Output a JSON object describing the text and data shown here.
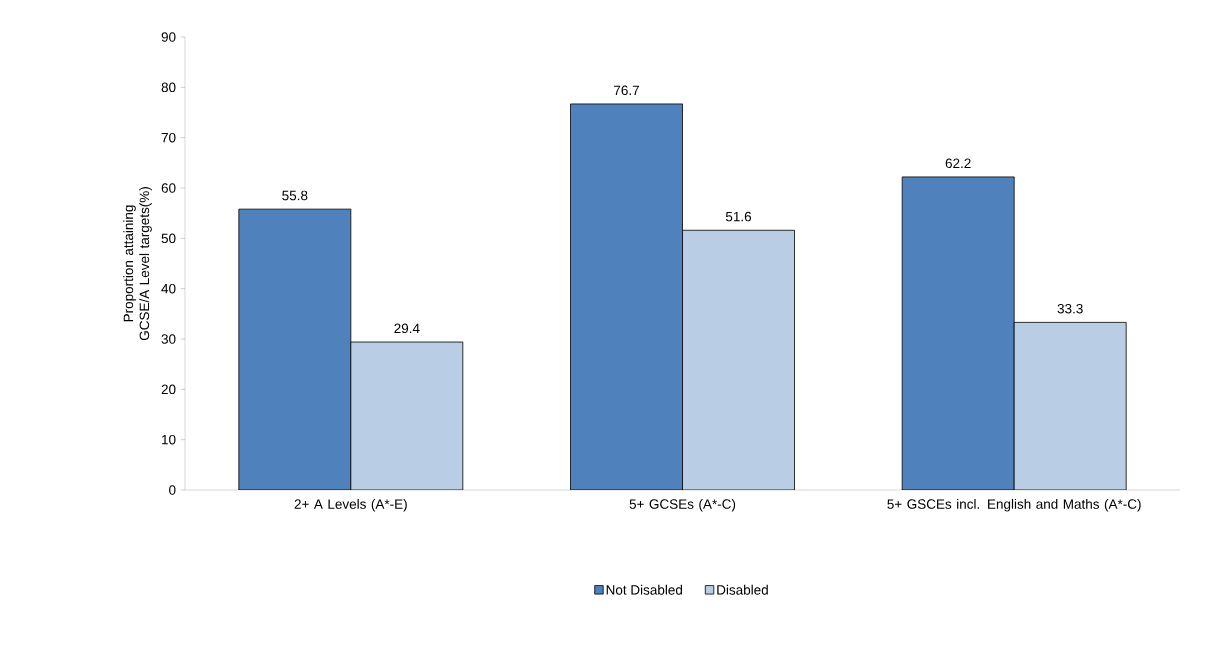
{
  "chart_data": {
    "type": "bar",
    "ylabel": "Proportion attaining GCSE/A Level targets(%)",
    "categories": [
      "2+ A Levels (A*-E)",
      "5+ GCSEs (A*-C)",
      "5+ GSCEs incl. English and Maths (A*-C)"
    ],
    "series": [
      {
        "name": "Not Disabled",
        "color": "#4f81bd",
        "values": [
          55.8,
          76.7,
          62.2
        ]
      },
      {
        "name": "Disabled",
        "color": "#b9cde5",
        "values": [
          29.4,
          51.6,
          33.3
        ]
      }
    ],
    "ylim": [
      0,
      90
    ],
    "yticks": [
      0,
      10,
      20,
      30,
      40,
      50,
      60,
      70,
      80,
      90
    ],
    "grid": false,
    "legend": "bottom",
    "data_labels": true
  }
}
